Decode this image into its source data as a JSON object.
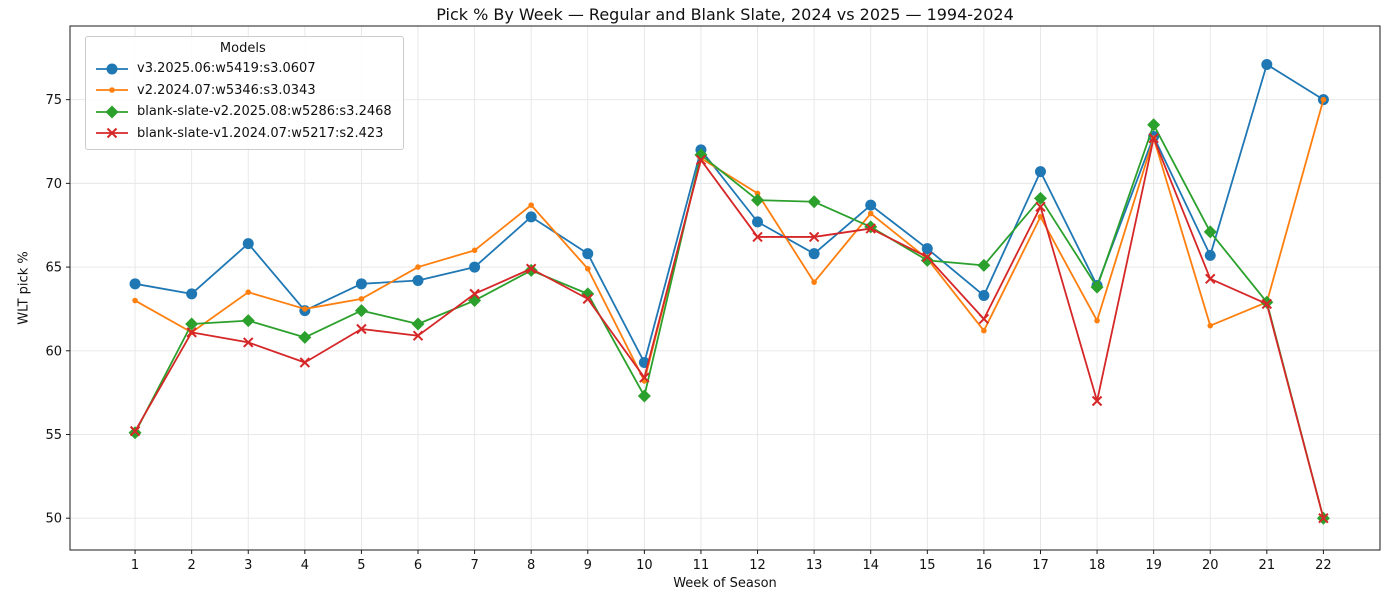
{
  "chart_data": {
    "type": "line",
    "title": "Pick % By Week — Regular and Blank Slate, 2024 vs 2025 — 1994-2024",
    "xlabel": "Week of Season",
    "ylabel": "WLT pick %",
    "x": [
      1,
      2,
      3,
      4,
      5,
      6,
      7,
      8,
      9,
      10,
      11,
      12,
      13,
      14,
      15,
      16,
      17,
      18,
      19,
      20,
      21,
      22
    ],
    "xlim": [
      -0.15,
      23.0
    ],
    "ylim": [
      48.1,
      79.4
    ],
    "yticks": [
      50,
      55,
      60,
      65,
      70,
      75
    ],
    "grid": true,
    "grid_color": "#e6e6e6",
    "legend": {
      "title": "Models",
      "position": "upper left"
    },
    "series": [
      {
        "name": "v3.2025.06:w5419:s3.0607",
        "color": "#1f77b4",
        "marker": "circle-large",
        "values": [
          64.0,
          63.4,
          66.4,
          62.4,
          64.0,
          64.2,
          65.0,
          68.0,
          65.8,
          59.3,
          72.0,
          67.7,
          65.8,
          68.7,
          66.1,
          63.3,
          70.7,
          63.9,
          72.8,
          65.7,
          77.1,
          75.0
        ]
      },
      {
        "name": "v2.2024.07:w5346:s3.0343",
        "color": "#ff7f0e",
        "marker": "circle-small",
        "values": [
          63.0,
          61.1,
          63.5,
          62.5,
          63.1,
          65.0,
          66.0,
          68.7,
          64.9,
          58.2,
          71.5,
          69.4,
          64.1,
          68.2,
          65.5,
          61.2,
          68.0,
          61.8,
          72.7,
          61.5,
          62.9,
          75.0
        ]
      },
      {
        "name": "blank-slate-v2.2025.08:w5286:s3.2468",
        "color": "#2ca02c",
        "marker": "diamond",
        "values": [
          55.1,
          61.6,
          61.8,
          60.8,
          62.4,
          61.6,
          63.0,
          64.8,
          63.4,
          57.3,
          71.7,
          69.0,
          68.9,
          67.4,
          65.4,
          65.1,
          69.1,
          63.8,
          73.5,
          67.1,
          62.9,
          50.0
        ]
      },
      {
        "name": "blank-slate-v1.2024.07:w5217:s2.423",
        "color": "#d62728",
        "marker": "x",
        "values": [
          55.2,
          61.1,
          60.5,
          59.3,
          61.3,
          60.9,
          63.4,
          64.9,
          63.1,
          58.4,
          71.4,
          66.8,
          66.8,
          67.3,
          65.6,
          61.9,
          68.6,
          57.0,
          72.7,
          64.3,
          62.8,
          50.0
        ]
      }
    ]
  }
}
